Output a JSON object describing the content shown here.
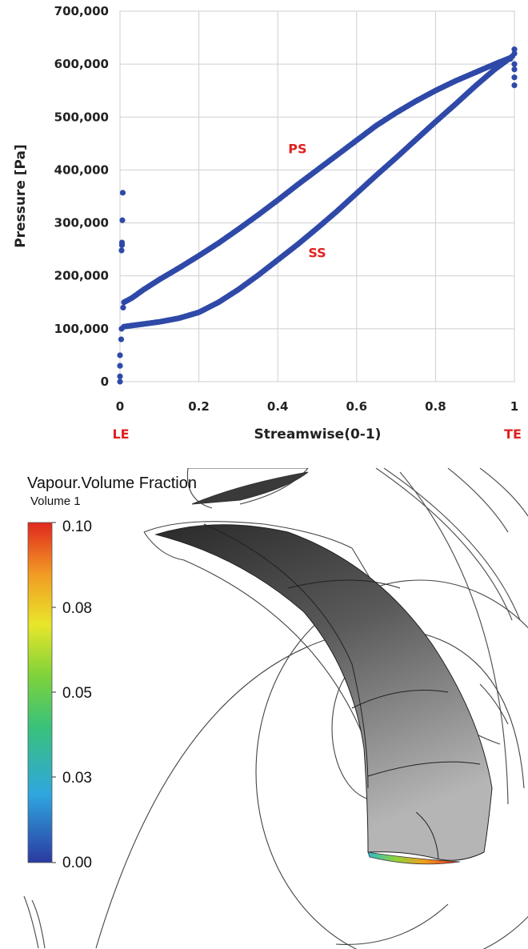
{
  "chart_data": {
    "type": "scatter",
    "xlabel": "Streamwise(0-1)",
    "ylabel": "Pressure [Pa]",
    "xlim": [
      0,
      1
    ],
    "ylim": [
      0,
      700000
    ],
    "grid": true,
    "x_ticks": [
      "0",
      "0.2",
      "0.4",
      "0.6",
      "0.8",
      "1"
    ],
    "y_ticks": [
      "0",
      "100,000",
      "200,000",
      "300,000",
      "400,000",
      "500,000",
      "600,000",
      "700,000"
    ],
    "x_tick_values": [
      0,
      0.2,
      0.4,
      0.6,
      0.8,
      1
    ],
    "y_tick_values": [
      0,
      100000,
      200000,
      300000,
      400000,
      500000,
      600000,
      700000
    ],
    "end_labels": {
      "leading": "LE",
      "trailing": "TE"
    },
    "marker_color": "#2f49a8",
    "series": [
      {
        "name": "PS",
        "x": [
          0.01,
          0.03,
          0.06,
          0.1,
          0.15,
          0.2,
          0.25,
          0.3,
          0.35,
          0.4,
          0.45,
          0.5,
          0.55,
          0.6,
          0.65,
          0.7,
          0.75,
          0.8,
          0.85,
          0.9,
          0.95,
          0.99
        ],
        "y": [
          150000,
          158000,
          174000,
          193000,
          215000,
          238000,
          262000,
          288000,
          315000,
          343000,
          372000,
          400000,
          428000,
          456000,
          484000,
          508000,
          530000,
          550000,
          568000,
          584000,
          600000,
          612000
        ]
      },
      {
        "name": "SS",
        "x": [
          0.01,
          0.03,
          0.06,
          0.1,
          0.15,
          0.2,
          0.25,
          0.3,
          0.35,
          0.4,
          0.45,
          0.5,
          0.55,
          0.6,
          0.65,
          0.7,
          0.75,
          0.8,
          0.85,
          0.9,
          0.95,
          0.99
        ],
        "y": [
          104000,
          106000,
          109000,
          113000,
          120000,
          131000,
          150000,
          174000,
          201000,
          230000,
          259000,
          290000,
          322000,
          356000,
          390000,
          423000,
          457000,
          491000,
          524000,
          558000,
          590000,
          612000
        ]
      },
      {
        "name": "LE",
        "x": [
          0.0,
          0.0,
          0.0,
          0.0,
          0.003,
          0.004,
          0.004,
          0.005,
          0.005,
          0.006,
          0.007,
          0.008
        ],
        "y": [
          0,
          10000,
          30000,
          50000,
          80000,
          100000,
          248000,
          258000,
          263000,
          305000,
          357000,
          140000
        ]
      },
      {
        "name": "TE",
        "x": [
          0.99,
          0.995,
          1.0,
          1.0,
          1.0,
          1.0,
          1.0,
          1.0
        ],
        "y": [
          610000,
          615000,
          628000,
          620000,
          600000,
          590000,
          575000,
          560000
        ]
      }
    ],
    "annotations": [
      {
        "text": "PS",
        "x": 0.45,
        "y": 432000
      },
      {
        "text": "SS",
        "x": 0.5,
        "y": 235000
      }
    ]
  },
  "contour": {
    "variable": "Vapour.Volume Fraction",
    "location": "Volume 1",
    "colorbar_ticks": [
      "0.10",
      "0.08",
      "0.05",
      "0.03",
      "0.00"
    ]
  }
}
